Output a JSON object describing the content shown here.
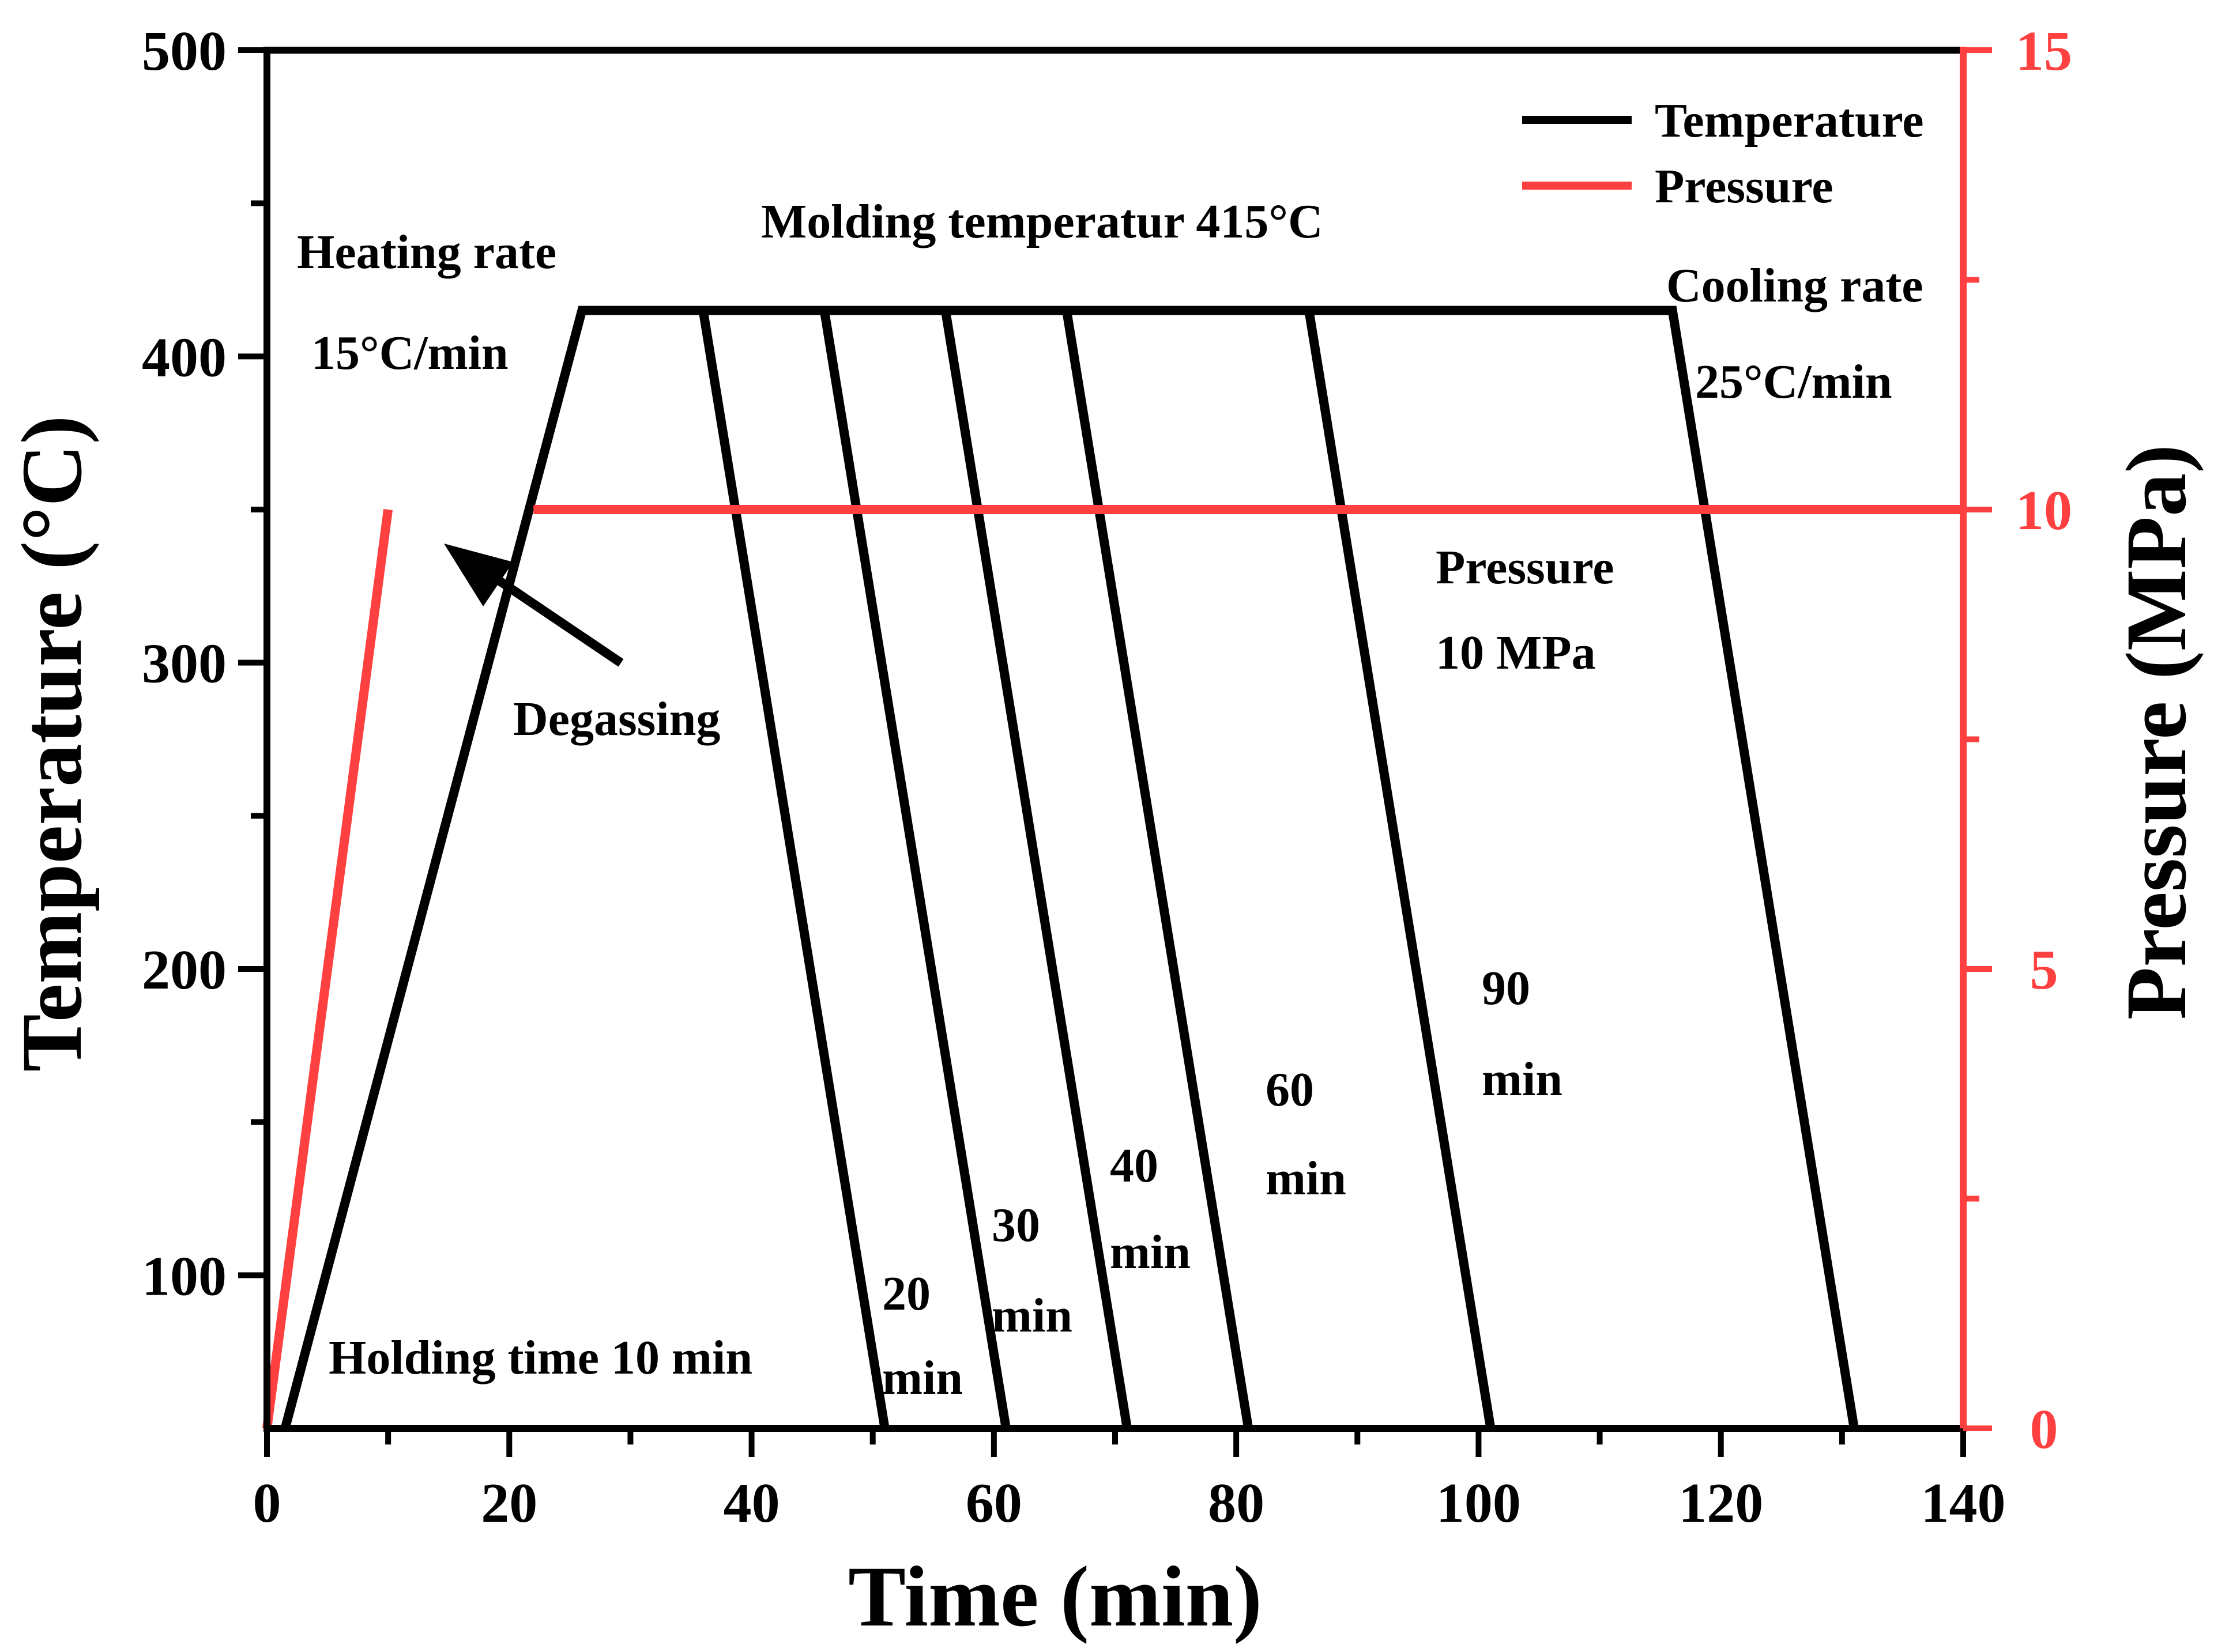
{
  "chart_data": {
    "type": "line",
    "title": "",
    "xlabel": "Time (min)",
    "ylabel": "Temperature (°C)",
    "y2label": "Pressure (MPa)",
    "xlim": [
      0,
      140
    ],
    "ylim": [
      50,
      500
    ],
    "y2lim": [
      0,
      15
    ],
    "grid": false,
    "legend_position": "top-right",
    "colors": {
      "temperature": "#000000",
      "pressure": "#ff4040"
    },
    "x_ticks": [
      "0",
      "20",
      "40",
      "60",
      "80",
      "100",
      "120",
      "140"
    ],
    "y_ticks": [
      "100",
      "200",
      "300",
      "400",
      "500"
    ],
    "y2_ticks": [
      "0",
      "5",
      "10",
      "15"
    ],
    "legend": [
      {
        "name": "Temperature",
        "color": "#000000"
      },
      {
        "name": "Pressure",
        "color": "#ff4040"
      }
    ],
    "series": [
      {
        "name": "Temperature",
        "axis": "left",
        "x": [
          1.5,
          26,
          116,
          131
        ],
        "y": [
          50,
          415,
          415,
          50
        ]
      },
      {
        "name": "Temperature (20 min hold)",
        "axis": "left",
        "x": [
          36,
          51
        ],
        "y": [
          415,
          50
        ]
      },
      {
        "name": "Temperature (30 min hold)",
        "axis": "left",
        "x": [
          46,
          61
        ],
        "y": [
          415,
          50
        ]
      },
      {
        "name": "Temperature (40 min hold)",
        "axis": "left",
        "x": [
          56,
          71
        ],
        "y": [
          415,
          50
        ]
      },
      {
        "name": "Temperature (60 min hold)",
        "axis": "left",
        "x": [
          66,
          81
        ],
        "y": [
          415,
          50
        ]
      },
      {
        "name": "Temperature (90 min hold)",
        "axis": "left",
        "x": [
          86,
          101
        ],
        "y": [
          415,
          50
        ]
      },
      {
        "name": "Pressure",
        "axis": "right",
        "x": [
          0,
          10
        ],
        "y": [
          0,
          10
        ]
      },
      {
        "name": "Pressure (hold)",
        "axis": "right",
        "x": [
          22,
          140
        ],
        "y": [
          10,
          10
        ]
      }
    ],
    "annotations": {
      "heating_rate_1": "Heating rate",
      "heating_rate_2": "15°C/min",
      "molding_temp": "Molding temperatur 415°C",
      "cooling_rate_1": "Cooling rate",
      "cooling_rate_2": "25°C/min",
      "pressure_1": "Pressure",
      "pressure_2": "10 MPa",
      "degassing": "Degassing",
      "holding_time": "Holding time 10 min",
      "hold_20_num": "20",
      "hold_20_unit": "min",
      "hold_30_num": "30",
      "hold_30_unit": "min",
      "hold_40_num": "40",
      "hold_40_unit": "min",
      "hold_60_num": "60",
      "hold_60_unit": "min",
      "hold_90_num": "90",
      "hold_90_unit": "min"
    }
  }
}
